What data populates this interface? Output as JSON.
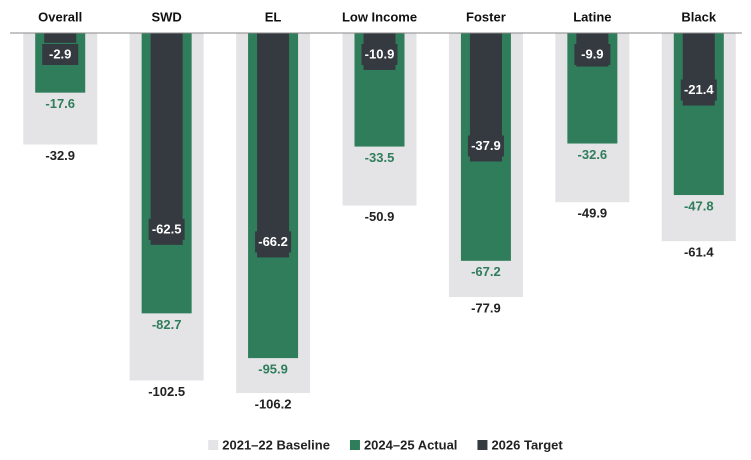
{
  "chart_data": {
    "type": "bar",
    "categories": [
      "Overall",
      "SWD",
      "EL",
      "Low Income",
      "Foster",
      "Latine",
      "Black"
    ],
    "series": [
      {
        "name": "2021–22 Baseline",
        "color": "#e4e4e7",
        "values": [
          -32.9,
          -102.5,
          -106.2,
          -50.9,
          -77.9,
          -49.9,
          -61.4
        ]
      },
      {
        "name": "2024–25 Actual",
        "color": "#2f7d5b",
        "values": [
          -17.6,
          -82.7,
          -95.9,
          -33.5,
          -67.2,
          -32.6,
          -47.8
        ]
      },
      {
        "name": "2026 Target",
        "color": "#343a40",
        "values": [
          -2.9,
          -62.5,
          -66.2,
          -10.9,
          -37.9,
          -9.9,
          -21.4
        ]
      }
    ],
    "ylim": [
      -115,
      0
    ],
    "legend": "bottom"
  }
}
